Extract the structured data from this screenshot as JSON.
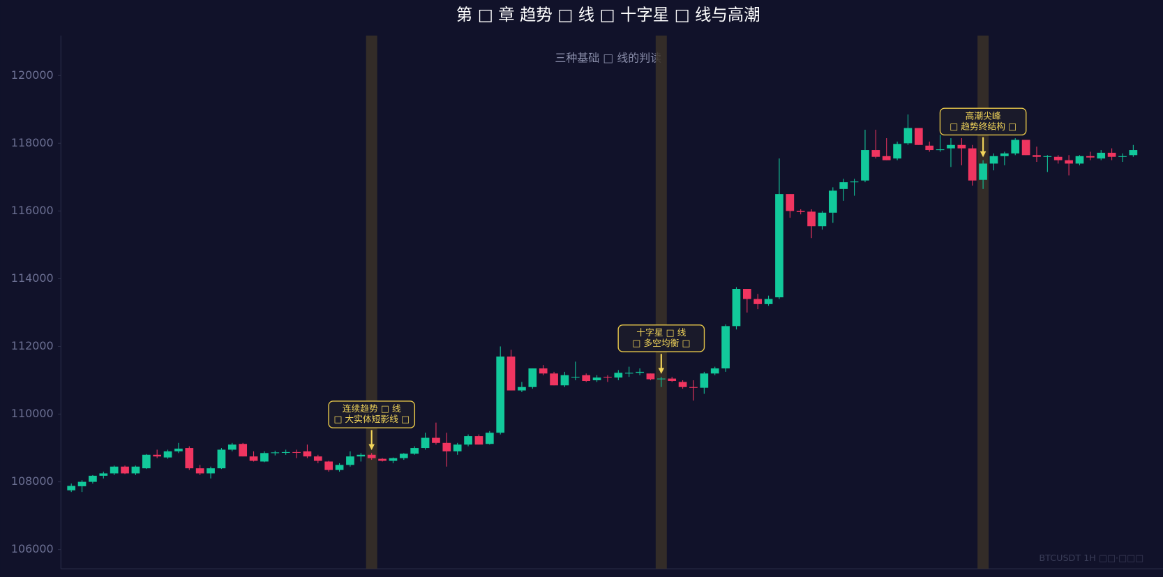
{
  "chart_data": {
    "type": "candlestick",
    "title": "第 □ 章 趋势 □ 线 □ 十字星 □ 线与高潮",
    "subtitle": "三种基础 □ 线的判读",
    "watermark": "BTCUSDT 1H  □□·□□□",
    "up_color": "#12c99b",
    "down_color": "#f03560",
    "ylim": [
      105430,
      121180
    ],
    "yticks": [
      106000,
      108000,
      110000,
      112000,
      114000,
      116000,
      118000,
      120000
    ],
    "open": [
      107750,
      107870,
      108000,
      108180,
      108250,
      108450,
      108250,
      108400,
      108800,
      108720,
      108900,
      109000,
      108400,
      108250,
      108400,
      108950,
      109120,
      108750,
      108600,
      108850,
      108870,
      108880,
      108900,
      108750,
      108600,
      108350,
      108500,
      108750,
      108800,
      108680,
      108620,
      108700,
      108830,
      109000,
      109300,
      109150,
      108900,
      109100,
      109350,
      109120,
      109450,
      111700,
      110700,
      110800,
      111350,
      111200,
      110850,
      111100,
      111150,
      111000,
      111100,
      111080,
      111220,
      111220,
      111200,
      111030,
      111050,
      110950,
      110800,
      110780,
      111200,
      111350,
      112600,
      113700,
      113400,
      113250,
      113450,
      116500,
      116000,
      115980,
      115550,
      115950,
      116650,
      116870,
      116900,
      117800,
      117620,
      117550,
      118000,
      118450,
      117930,
      117800,
      117850,
      117950,
      117850,
      116920,
      117400,
      117620,
      117700,
      118100,
      117650,
      117600,
      117600,
      117500,
      117400,
      117620,
      117550,
      117720,
      117600,
      117650
    ],
    "high": [
      107950,
      108050,
      108200,
      108300,
      108480,
      108480,
      108480,
      108820,
      108950,
      108950,
      109150,
      109050,
      108500,
      108450,
      109000,
      109150,
      109150,
      108900,
      108900,
      108920,
      108950,
      108950,
      109100,
      108800,
      108620,
      108550,
      108900,
      108850,
      108850,
      108700,
      108720,
      108850,
      109050,
      109450,
      109750,
      109450,
      109150,
      109400,
      109400,
      109500,
      112000,
      111900,
      110950,
      111350,
      111450,
      111250,
      111250,
      111550,
      111200,
      111150,
      111150,
      111300,
      111400,
      111350,
      111200,
      111100,
      111100,
      111000,
      111000,
      111250,
      111400,
      112650,
      113750,
      113700,
      113550,
      113500,
      117550,
      116500,
      116050,
      116050,
      116000,
      116700,
      116950,
      116950,
      118400,
      118400,
      118150,
      118050,
      118850,
      118450,
      118050,
      118250,
      118150,
      118150,
      117950,
      117500,
      117700,
      117750,
      118150,
      118100,
      117900,
      117650,
      117650,
      117650,
      117650,
      117750,
      117800,
      117850,
      117700,
      117950
    ],
    "low": [
      107700,
      107700,
      107950,
      108100,
      108200,
      108230,
      108200,
      108380,
      108700,
      108680,
      108850,
      108350,
      108200,
      108100,
      108380,
      108900,
      108750,
      108600,
      108580,
      108780,
      108800,
      108700,
      108700,
      108550,
      108300,
      108300,
      108450,
      108600,
      108650,
      108600,
      108550,
      108650,
      108800,
      108950,
      109100,
      108450,
      108800,
      109050,
      109100,
      109100,
      109400,
      110700,
      110650,
      110750,
      111150,
      110850,
      110800,
      111000,
      110950,
      110950,
      110950,
      111000,
      111100,
      111150,
      111000,
      110800,
      110950,
      110750,
      110400,
      110600,
      111150,
      111250,
      112500,
      113000,
      113100,
      113200,
      113400,
      115800,
      115900,
      115200,
      115450,
      115650,
      116300,
      116450,
      116850,
      117550,
      117500,
      117500,
      117950,
      117950,
      117750,
      117750,
      117300,
      117350,
      116750,
      116650,
      117200,
      117350,
      117650,
      117650,
      117450,
      117150,
      117400,
      117050,
      117350,
      117500,
      117500,
      117500,
      117450,
      117600
    ],
    "close": [
      107880,
      108000,
      108180,
      108250,
      108450,
      108250,
      108450,
      108800,
      108750,
      108900,
      108980,
      108400,
      108250,
      108400,
      108950,
      109100,
      108750,
      108620,
      108850,
      108870,
      108880,
      108870,
      108750,
      108620,
      108350,
      108500,
      108750,
      108800,
      108700,
      108620,
      108700,
      108830,
      109000,
      109300,
      109150,
      108900,
      109100,
      109350,
      109100,
      109450,
      111700,
      110700,
      110800,
      111350,
      111200,
      110850,
      111150,
      111100,
      110980,
      111080,
      111080,
      111220,
      111220,
      111250,
      111030,
      111050,
      110980,
      110800,
      110780,
      111200,
      111350,
      112600,
      113700,
      113400,
      113250,
      113400,
      116500,
      116000,
      115970,
      115550,
      115950,
      116600,
      116850,
      116870,
      117800,
      117600,
      117500,
      117980,
      118450,
      117950,
      117800,
      117820,
      117950,
      117850,
      116900,
      117400,
      117620,
      117700,
      118100,
      117650,
      117600,
      117620,
      117500,
      117400,
      117620,
      117580,
      117720,
      117600,
      117620,
      117800
    ],
    "annotations": [
      {
        "index": 28,
        "lines": [
          "连续趋势 □ 线",
          "□ 大实体短影线 □"
        ]
      },
      {
        "index": 55,
        "lines": [
          "十字星 □ 线",
          "□ 多空均衡 □"
        ]
      },
      {
        "index": 85,
        "lines": [
          "高潮尖峰",
          "□ 趋势终结构 □"
        ]
      }
    ]
  }
}
